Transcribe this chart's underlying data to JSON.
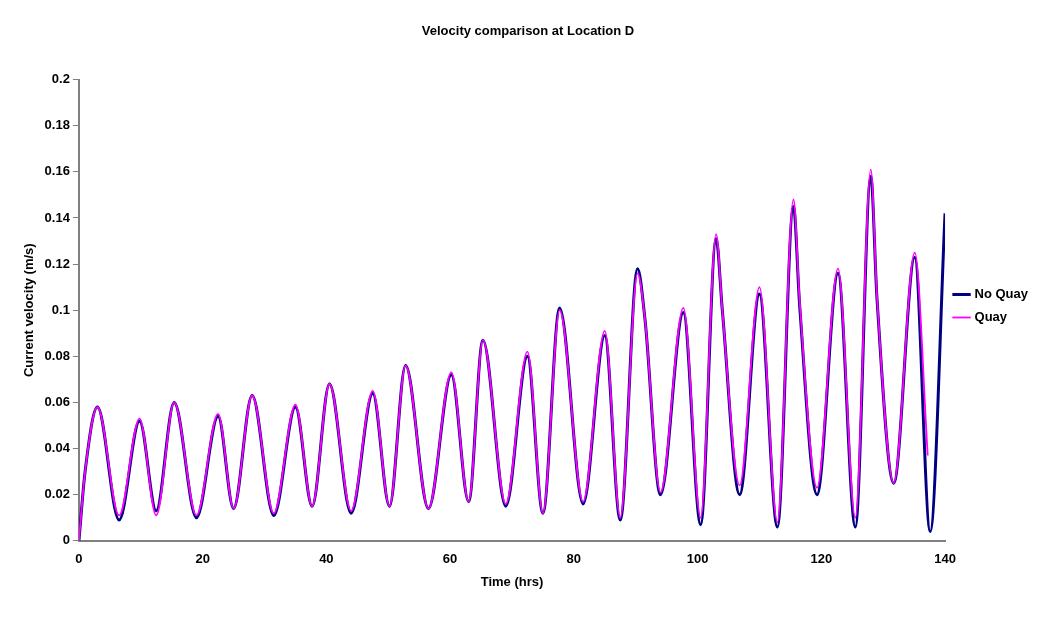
{
  "chart_data": {
    "type": "line",
    "title": "Velocity comparison at Location D",
    "xlabel": "Time (hrs)",
    "ylabel": "Current velocity (m/s)",
    "xlim": [
      0,
      140
    ],
    "xticks": [
      0,
      20,
      40,
      60,
      80,
      100,
      120,
      140
    ],
    "ylim": [
      0,
      0.2
    ],
    "yticks": [
      0,
      0.02,
      0.04,
      0.06,
      0.08,
      0.1,
      0.12,
      0.14,
      0.16,
      0.18,
      0.2
    ],
    "grid": false,
    "legend": "right",
    "series": [
      {
        "name": "No Quay",
        "color": "#000080",
        "x": [
          0,
          1,
          3,
          6.5,
          9.8,
          12.5,
          15.4,
          19,
          22.5,
          25,
          28,
          31.5,
          35,
          37.7,
          40.5,
          44,
          47.5,
          50.2,
          52.8,
          56.5,
          60.2,
          63,
          65.3,
          69,
          72.5,
          75,
          77.7,
          81.5,
          85,
          87.5,
          90.3,
          91.5,
          94,
          97.7,
          100.5,
          103,
          104,
          106.8,
          110,
          112.9,
          115.5,
          116.5,
          119.3,
          122.7,
          125.5,
          128,
          129,
          131.7,
          135.1,
          137.6,
          140
        ],
        "values": [
          0,
          0.03,
          0.058,
          0.009,
          0.052,
          0.013,
          0.06,
          0.01,
          0.054,
          0.014,
          0.063,
          0.011,
          0.058,
          0.015,
          0.068,
          0.012,
          0.064,
          0.015,
          0.076,
          0.014,
          0.072,
          0.017,
          0.087,
          0.015,
          0.08,
          0.012,
          0.101,
          0.016,
          0.089,
          0.009,
          0.118,
          0.096,
          0.02,
          0.099,
          0.007,
          0.131,
          0.1,
          0.02,
          0.107,
          0.006,
          0.145,
          0.102,
          0.02,
          0.116,
          0.006,
          0.158,
          0.105,
          0.025,
          0.123,
          0.004,
          0.142
        ]
      },
      {
        "name": "Quay",
        "color": "#ff00ff",
        "x": [
          0,
          1,
          3,
          6.5,
          9.8,
          12.5,
          15.4,
          19,
          22.5,
          25,
          28,
          31.5,
          35,
          37.7,
          40.5,
          44,
          47.5,
          50.2,
          52.8,
          56.5,
          60.2,
          63,
          65.3,
          69,
          72.5,
          75,
          77.7,
          81.5,
          85,
          87.5,
          90.3,
          91.5,
          94,
          97.7,
          100.5,
          103,
          104,
          106.8,
          110,
          112.9,
          115.5,
          116.5,
          119.3,
          122.7,
          125.5,
          128,
          129,
          131.7,
          135.1,
          137.2
        ],
        "values": [
          0,
          0.03,
          0.058,
          0.011,
          0.053,
          0.011,
          0.06,
          0.011,
          0.055,
          0.014,
          0.063,
          0.012,
          0.059,
          0.015,
          0.068,
          0.013,
          0.065,
          0.015,
          0.076,
          0.014,
          0.073,
          0.017,
          0.087,
          0.016,
          0.082,
          0.012,
          0.1,
          0.017,
          0.091,
          0.01,
          0.116,
          0.096,
          0.021,
          0.101,
          0.01,
          0.133,
          0.1,
          0.024,
          0.11,
          0.008,
          0.148,
          0.104,
          0.023,
          0.118,
          0.01,
          0.161,
          0.106,
          0.025,
          0.125,
          0.037
        ]
      }
    ]
  }
}
